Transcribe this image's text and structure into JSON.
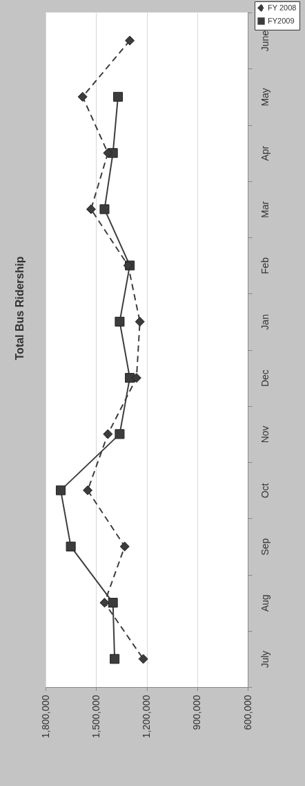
{
  "chart_data": {
    "type": "line",
    "title": "Total Bus Ridership",
    "orientation": "horizontal",
    "categories": [
      "June",
      "May",
      "Apr",
      "Mar",
      "Feb",
      "Jan",
      "Dec",
      "Nov",
      "Oct",
      "Sep",
      "Aug",
      "July"
    ],
    "series": [
      {
        "name": "FY 2008",
        "color": "#3c3c3c",
        "marker": "diamond",
        "line_style": "dashed",
        "values": [
          1300000,
          1580000,
          1430000,
          1530000,
          1310000,
          1240000,
          1260000,
          1430000,
          1550000,
          1330000,
          1450000,
          1220000
        ]
      },
      {
        "name": "FY2009",
        "color": "#3c3c3c",
        "marker": "square",
        "line_style": "solid",
        "values": [
          null,
          1370000,
          1400000,
          1450000,
          1300000,
          1360000,
          1300000,
          1360000,
          1710000,
          1650000,
          1400000,
          1390000
        ]
      }
    ],
    "xlim": [
      1800000,
      600000
    ],
    "xticks": [
      {
        "value": 600000,
        "label": "600,000"
      },
      {
        "value": 900000,
        "label": "900,000"
      },
      {
        "value": 1200000,
        "label": "1,200,000"
      },
      {
        "value": 1500000,
        "label": "1,500,000"
      },
      {
        "value": 1800000,
        "label": "1,800,000"
      }
    ],
    "grid": "x",
    "legend": "top right"
  }
}
